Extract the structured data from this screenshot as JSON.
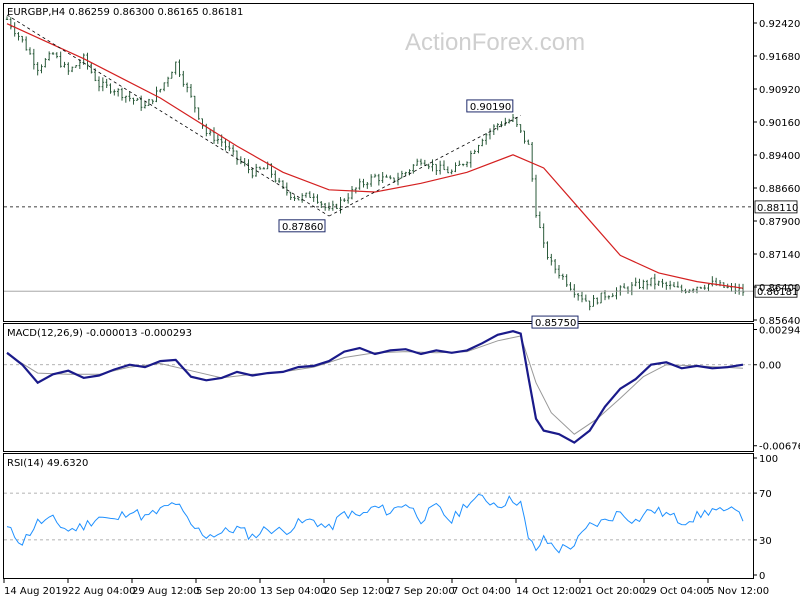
{
  "watermark": "ActionForex.com",
  "chart_data": [
    {
      "type": "candlestick",
      "panel": "price",
      "title": "EURGBP,H4  0.86259 0.86300 0.86165 0.86181",
      "x_tick_labels": [
        "14 Aug 2019",
        "22 Aug 04:00",
        "29 Aug 12:00",
        "5 Sep 20:00",
        "13 Sep 04:00",
        "20 Sep 12:00",
        "27 Sep 20:00",
        "7 Oct 04:00",
        "14 Oct 12:00",
        "21 Oct 20:00",
        "29 Oct 04:00",
        "5 Nov 12:00"
      ],
      "y_tick_labels": [
        "0.92420",
        "0.91680",
        "0.90920",
        "0.90160",
        "0.89400",
        "0.88660",
        "0.87900",
        "0.87140",
        "0.86400",
        "0.85640"
      ],
      "ylim": [
        0.855,
        0.9275
      ],
      "levels": [
        {
          "label": "0.88110",
          "value": 0.8811,
          "style": "dashed"
        },
        {
          "label": "0.86181",
          "value": 0.86181,
          "style": "current"
        }
      ],
      "annotations": [
        {
          "label": "0.90190",
          "value": 0.9019
        },
        {
          "label": "0.87860",
          "value": 0.8786
        },
        {
          "label": "0.85750",
          "value": 0.8575
        }
      ],
      "close_path": [
        [
          0,
          0.924
        ],
        [
          4,
          0.919
        ],
        [
          8,
          0.913
        ],
        [
          12,
          0.916
        ],
        [
          16,
          0.912
        ],
        [
          20,
          0.915
        ],
        [
          24,
          0.909
        ],
        [
          28,
          0.908
        ],
        [
          32,
          0.906
        ],
        [
          36,
          0.904
        ],
        [
          40,
          0.908
        ],
        [
          44,
          0.914
        ],
        [
          48,
          0.906
        ],
        [
          52,
          0.898
        ],
        [
          56,
          0.896
        ],
        [
          60,
          0.892
        ],
        [
          64,
          0.889
        ],
        [
          68,
          0.89
        ],
        [
          72,
          0.885
        ],
        [
          76,
          0.883
        ],
        [
          80,
          0.884
        ],
        [
          84,
          0.88
        ],
        [
          88,
          0.883
        ],
        [
          92,
          0.886
        ],
        [
          96,
          0.888
        ],
        [
          100,
          0.887
        ],
        [
          104,
          0.889
        ],
        [
          108,
          0.892
        ],
        [
          112,
          0.89
        ],
        [
          116,
          0.889
        ],
        [
          120,
          0.892
        ],
        [
          124,
          0.897
        ],
        [
          128,
          0.9
        ],
        [
          132,
          0.901
        ],
        [
          136,
          0.895
        ],
        [
          138,
          0.88
        ],
        [
          140,
          0.872
        ],
        [
          142,
          0.868
        ],
        [
          144,
          0.866
        ],
        [
          148,
          0.862
        ],
        [
          152,
          0.859
        ],
        [
          156,
          0.861
        ],
        [
          160,
          0.862
        ],
        [
          164,
          0.863
        ],
        [
          168,
          0.864
        ],
        [
          172,
          0.863
        ],
        [
          176,
          0.862
        ],
        [
          180,
          0.863
        ],
        [
          184,
          0.8635
        ],
        [
          188,
          0.8625
        ],
        [
          192,
          0.8618
        ]
      ],
      "ma_path": [
        [
          0,
          0.923
        ],
        [
          20,
          0.915
        ],
        [
          40,
          0.906
        ],
        [
          60,
          0.895
        ],
        [
          72,
          0.889
        ],
        [
          84,
          0.885
        ],
        [
          96,
          0.8845
        ],
        [
          108,
          0.8865
        ],
        [
          120,
          0.889
        ],
        [
          132,
          0.893
        ],
        [
          140,
          0.89
        ],
        [
          150,
          0.88
        ],
        [
          160,
          0.87
        ],
        [
          170,
          0.866
        ],
        [
          180,
          0.864
        ],
        [
          192,
          0.8625
        ]
      ],
      "trendlines": [
        {
          "from": [
            0,
            0.925
          ],
          "to": [
            84,
            0.879
          ]
        },
        {
          "from": [
            84,
            0.879
          ],
          "to": [
            134,
            0.902
          ]
        }
      ]
    },
    {
      "type": "line",
      "panel": "macd",
      "title": "MACD(12,26,9) -0.000013 -0.000293",
      "y_tick_labels": [
        "0.002942",
        "0.00",
        "-0.006761"
      ],
      "ylim": [
        -0.0072,
        0.0034
      ],
      "zero_line": 0,
      "series": [
        {
          "values": [
            [
              0,
              0.001
            ],
            [
              4,
              0.0
            ],
            [
              8,
              -0.0015
            ],
            [
              12,
              -0.0008
            ],
            [
              16,
              -0.0005
            ],
            [
              20,
              -0.0011
            ],
            [
              24,
              -0.0009
            ],
            [
              28,
              -0.0004
            ],
            [
              32,
              0.0
            ],
            [
              36,
              -0.0002
            ],
            [
              40,
              0.0003
            ],
            [
              44,
              0.0004
            ],
            [
              48,
              -0.001
            ],
            [
              52,
              -0.0013
            ],
            [
              56,
              -0.0011
            ],
            [
              60,
              -0.0006
            ],
            [
              64,
              -0.0009
            ],
            [
              68,
              -0.0007
            ],
            [
              72,
              -0.0006
            ],
            [
              76,
              -0.0002
            ],
            [
              80,
              -0.0001
            ],
            [
              84,
              0.0003
            ],
            [
              88,
              0.0011
            ],
            [
              92,
              0.0014
            ],
            [
              96,
              0.0009
            ],
            [
              100,
              0.0012
            ],
            [
              104,
              0.0013
            ],
            [
              108,
              0.0009
            ],
            [
              112,
              0.0012
            ],
            [
              116,
              0.001
            ],
            [
              120,
              0.0012
            ],
            [
              124,
              0.0018
            ],
            [
              128,
              0.0025
            ],
            [
              132,
              0.0028
            ],
            [
              134,
              0.0026
            ],
            [
              136,
              -0.001
            ],
            [
              138,
              -0.0045
            ],
            [
              140,
              -0.0055
            ],
            [
              144,
              -0.0058
            ],
            [
              148,
              -0.0065
            ],
            [
              152,
              -0.0055
            ],
            [
              156,
              -0.0035
            ],
            [
              160,
              -0.002
            ],
            [
              164,
              -0.0012
            ],
            [
              168,
              0.0
            ],
            [
              172,
              0.0002
            ],
            [
              176,
              -0.0003
            ],
            [
              180,
              -0.0001
            ],
            [
              184,
              -0.0003
            ],
            [
              188,
              -0.0002
            ],
            [
              192,
              0.0
            ]
          ]
        },
        {
          "values": [
            [
              0,
              0.0009
            ],
            [
              8,
              -0.0007
            ],
            [
              16,
              -0.0008
            ],
            [
              24,
              -0.0008
            ],
            [
              32,
              -0.0002
            ],
            [
              40,
              0.0001
            ],
            [
              48,
              -0.0005
            ],
            [
              56,
              -0.0011
            ],
            [
              64,
              -0.0008
            ],
            [
              72,
              -0.0006
            ],
            [
              80,
              -0.0002
            ],
            [
              88,
              0.0006
            ],
            [
              96,
              0.001
            ],
            [
              104,
              0.0011
            ],
            [
              112,
              0.001
            ],
            [
              120,
              0.0011
            ],
            [
              128,
              0.002
            ],
            [
              134,
              0.0024
            ],
            [
              138,
              -0.0015
            ],
            [
              142,
              -0.004
            ],
            [
              148,
              -0.0058
            ],
            [
              154,
              -0.0045
            ],
            [
              160,
              -0.0028
            ],
            [
              166,
              -0.001
            ],
            [
              172,
              0.0
            ],
            [
              180,
              -0.0001
            ],
            [
              192,
              -0.0003
            ]
          ]
        }
      ]
    },
    {
      "type": "line",
      "panel": "rsi",
      "title": "RSI(14) 49.6320",
      "y_tick_labels": [
        "100",
        "70",
        "30",
        "0"
      ],
      "ylim": [
        0,
        100
      ],
      "levels": [
        70,
        30
      ],
      "series": [
        {
          "values": [
            [
              0,
              40
            ],
            [
              4,
              28
            ],
            [
              8,
              45
            ],
            [
              12,
              47
            ],
            [
              16,
              38
            ],
            [
              20,
              42
            ],
            [
              24,
              50
            ],
            [
              28,
              46
            ],
            [
              32,
              56
            ],
            [
              36,
              49
            ],
            [
              40,
              55
            ],
            [
              44,
              62
            ],
            [
              48,
              42
            ],
            [
              52,
              34
            ],
            [
              56,
              36
            ],
            [
              60,
              40
            ],
            [
              64,
              33
            ],
            [
              68,
              40
            ],
            [
              72,
              37
            ],
            [
              76,
              44
            ],
            [
              80,
              47
            ],
            [
              84,
              39
            ],
            [
              88,
              53
            ],
            [
              92,
              50
            ],
            [
              96,
              58
            ],
            [
              100,
              54
            ],
            [
              104,
              62
            ],
            [
              108,
              48
            ],
            [
              112,
              58
            ],
            [
              116,
              46
            ],
            [
              120,
              62
            ],
            [
              124,
              66
            ],
            [
              128,
              60
            ],
            [
              132,
              65
            ],
            [
              134,
              62
            ],
            [
              136,
              30
            ],
            [
              138,
              22
            ],
            [
              140,
              30
            ],
            [
              144,
              22
            ],
            [
              148,
              26
            ],
            [
              152,
              42
            ],
            [
              156,
              46
            ],
            [
              160,
              54
            ],
            [
              164,
              46
            ],
            [
              168,
              56
            ],
            [
              172,
              52
            ],
            [
              176,
              46
            ],
            [
              180,
              50
            ],
            [
              184,
              56
            ],
            [
              188,
              52
            ],
            [
              190,
              60
            ],
            [
              192,
              50
            ]
          ]
        }
      ]
    }
  ]
}
